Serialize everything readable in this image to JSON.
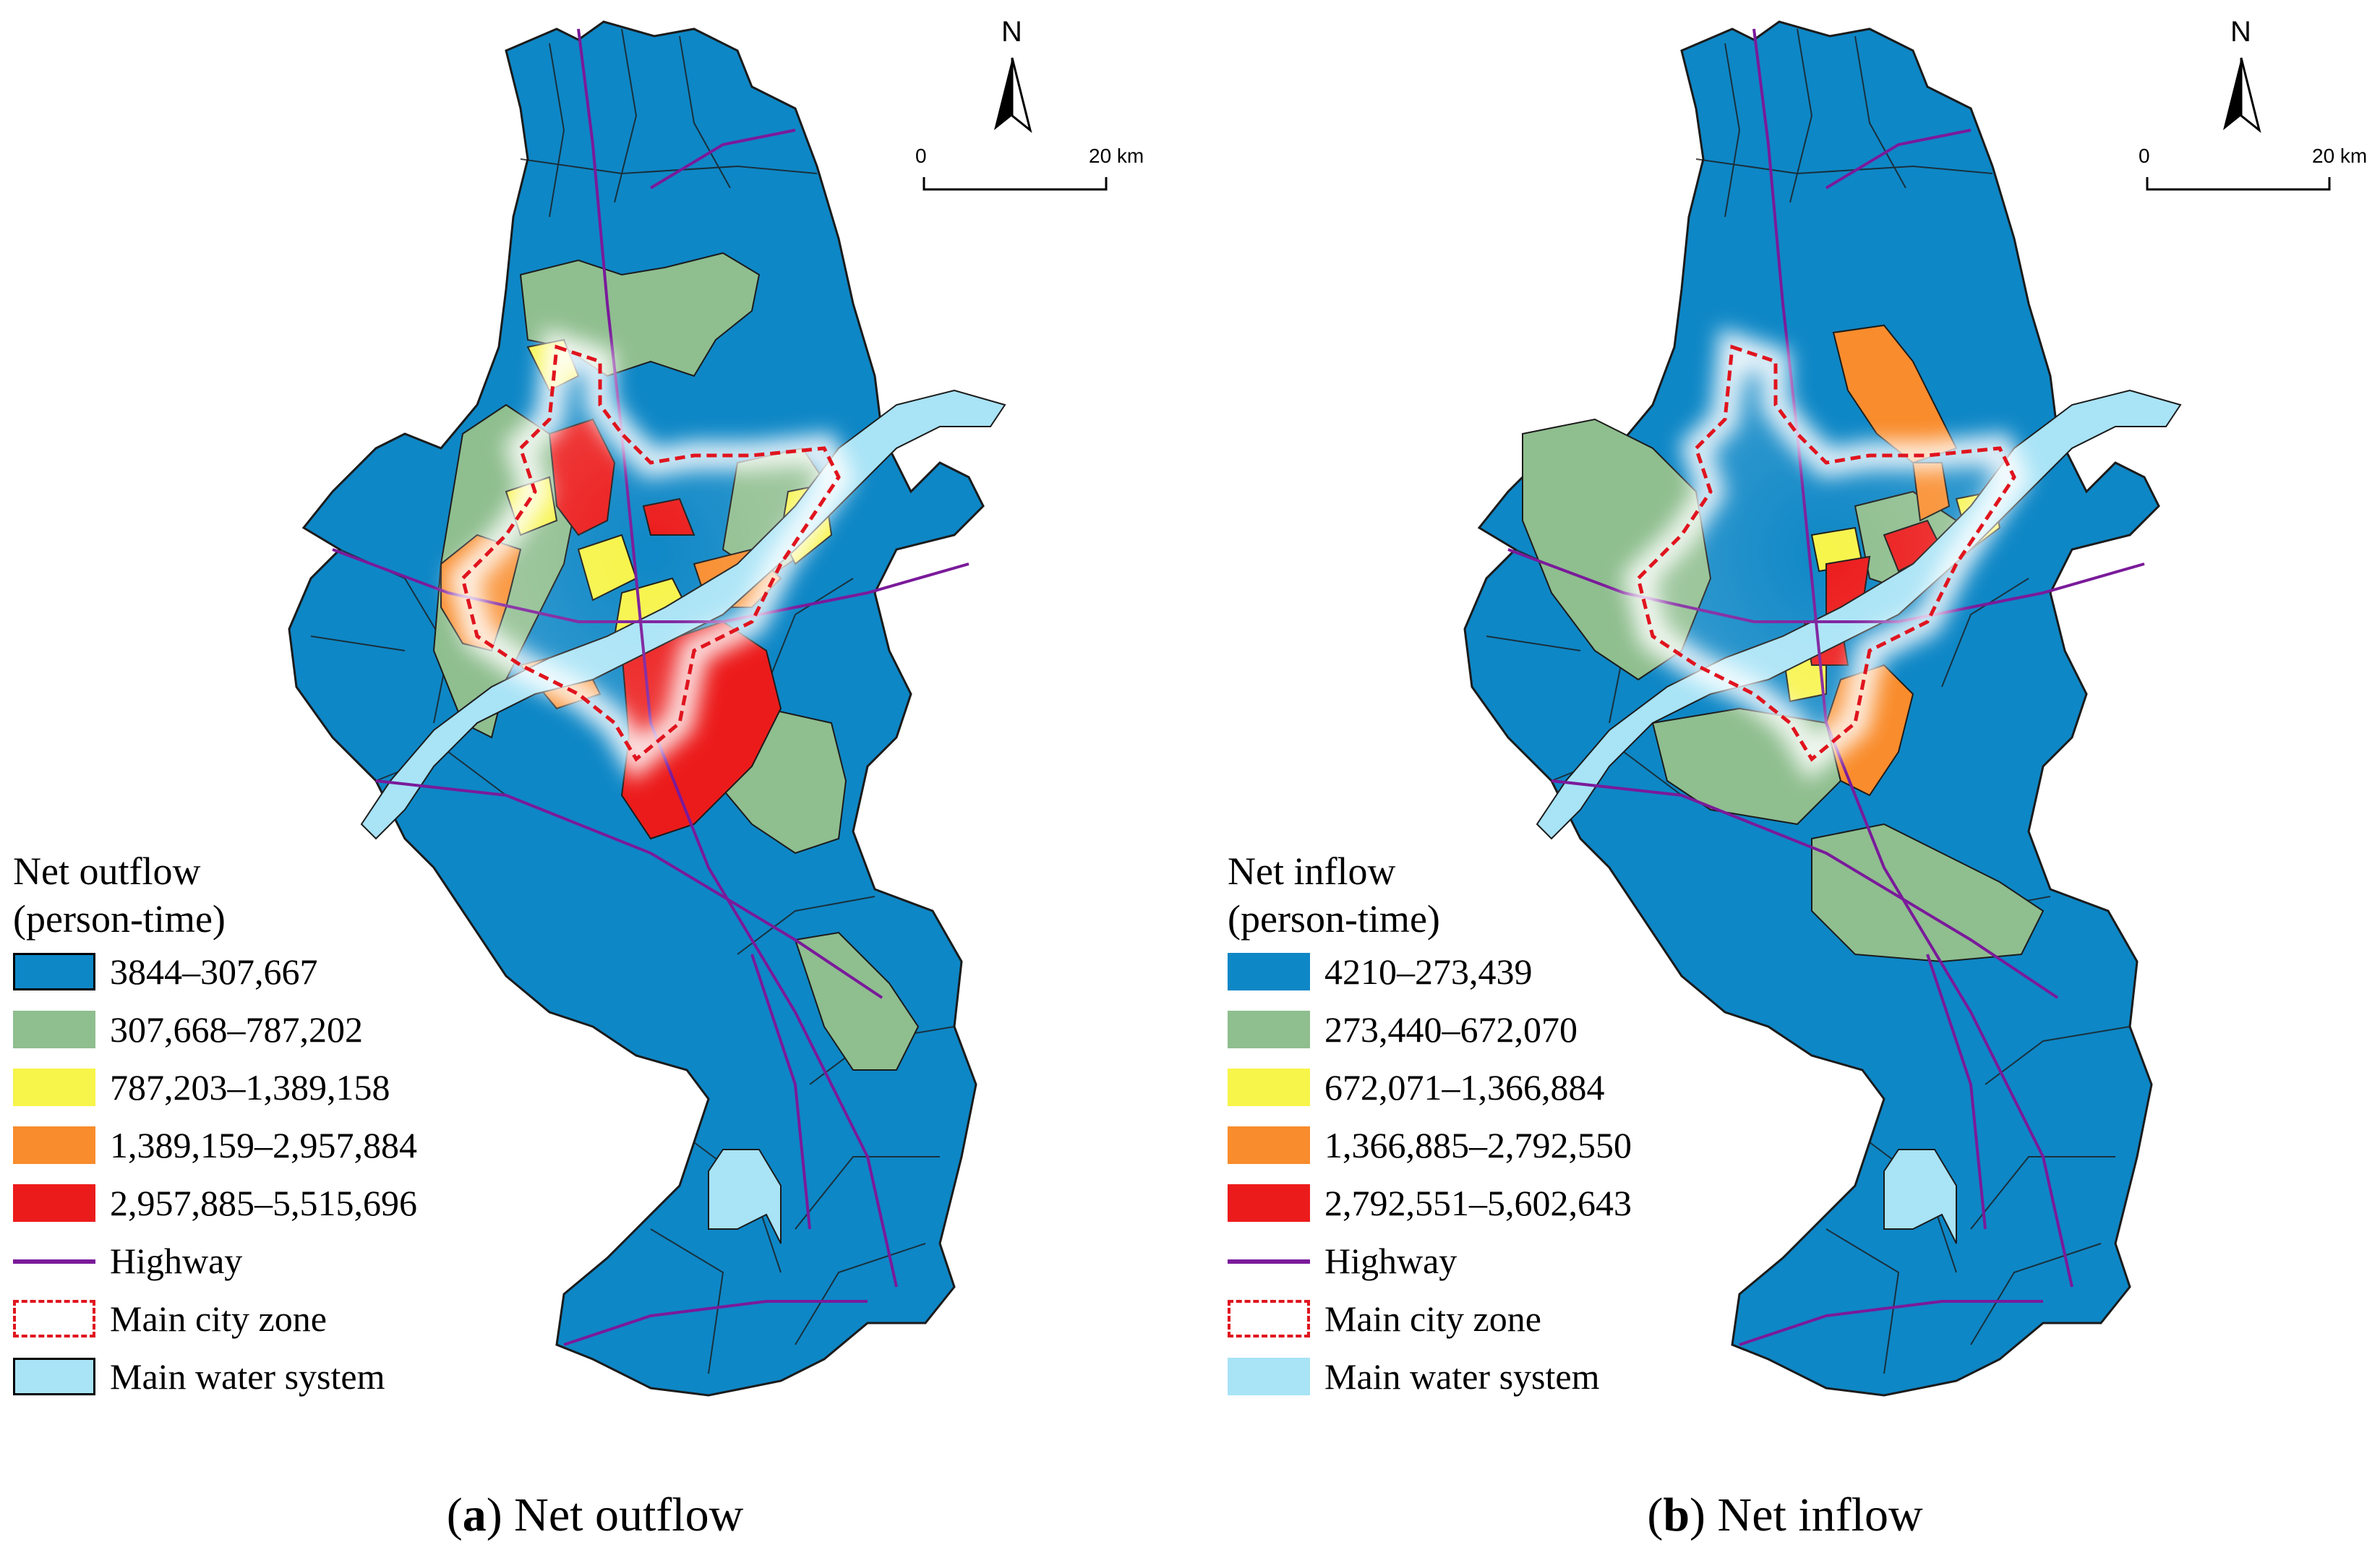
{
  "colors": {
    "class1": "#0e87c6",
    "class2": "#8fbe8f",
    "class3": "#f7f44a",
    "class4": "#f98c2c",
    "class5": "#ec1b1b",
    "highway": "#7a1a9a",
    "main_city_zone": "#e0141e",
    "water": "#a8e3f6",
    "boundary": "#1b1b1b"
  },
  "panels": [
    {
      "id": "a",
      "caption_letter": "a",
      "caption_text": "Net outflow",
      "legend_title_line1": "Net outflow",
      "legend_title_line2": "(person-time)",
      "classes": [
        "3844–307,667",
        "307,668–787,202",
        "787,203–1,389,158",
        "1,389,159–2,957,884",
        "2,957,885–5,515,696"
      ],
      "highway_label": "Highway",
      "main_city_label": "Main city zone",
      "water_label": "Main water system",
      "north_label": "N",
      "scale_start": "0",
      "scale_end": "20 km"
    },
    {
      "id": "b",
      "caption_letter": "b",
      "caption_text": "Net inflow",
      "legend_title_line1": "Net inflow",
      "legend_title_line2": "(person-time)",
      "classes": [
        "4210–273,439",
        "273,440–672,070",
        "672,071–1,366,884",
        "1,366,885–2,792,550",
        "2,792,551–5,602,643"
      ],
      "highway_label": "Highway",
      "main_city_label": "Main city zone",
      "water_label": "Main water system",
      "north_label": "N",
      "scale_start": "0",
      "scale_end": "20 km"
    }
  ]
}
